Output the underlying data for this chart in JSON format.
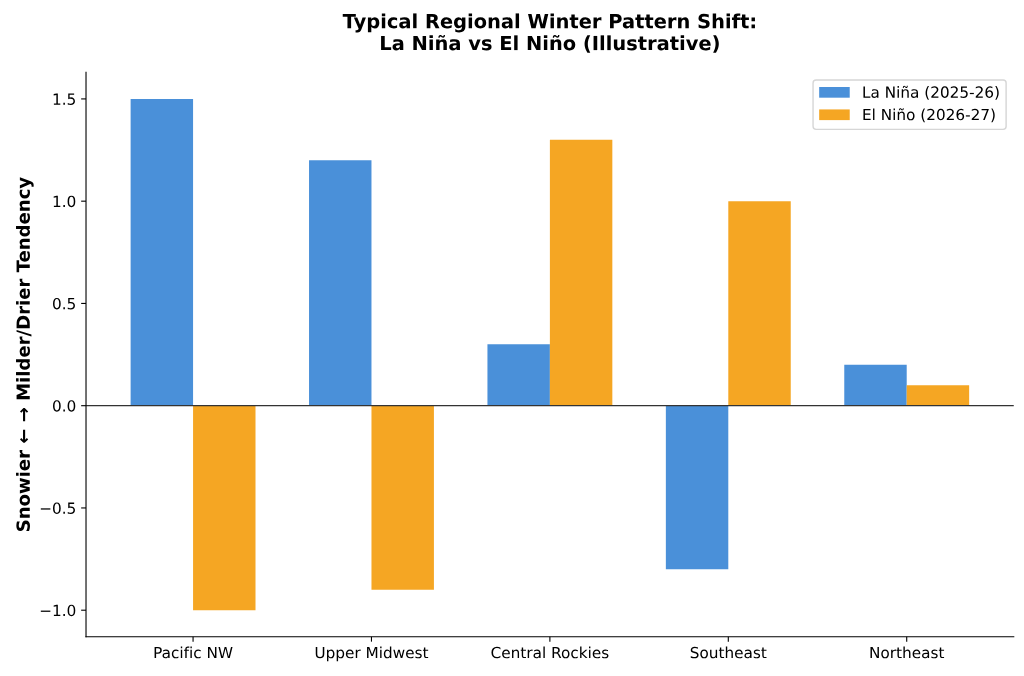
{
  "chart_data": {
    "type": "bar",
    "title": "Typical Regional Winter Pattern Shift:\nLa Niña vs El Niño (Illustrative)",
    "ylabel": "Snowier ← → Milder/Drier Tendency",
    "categories": [
      "Pacific NW",
      "Upper Midwest",
      "Central Rockies",
      "Southeast",
      "Northeast"
    ],
    "series": [
      {
        "name": "La Niña (2025-26)",
        "color": "#4a90d9",
        "values": [
          1.5,
          1.2,
          0.3,
          -0.8,
          0.2
        ]
      },
      {
        "name": "El Niño (2026-27)",
        "color": "#f5a623",
        "values": [
          -1.0,
          -0.9,
          1.3,
          1.0,
          0.1
        ]
      }
    ],
    "ylim": [
      -1.13,
      1.63
    ],
    "yticks": [
      {
        "value": -1.0,
        "label": "−1.0"
      },
      {
        "value": -0.5,
        "label": "−0.5"
      },
      {
        "value": 0.0,
        "label": "0.0"
      },
      {
        "value": 0.5,
        "label": "0.5"
      },
      {
        "value": 1.0,
        "label": "1.0"
      },
      {
        "value": 1.5,
        "label": "1.5"
      }
    ],
    "ref_lines": [
      {
        "axis": "y",
        "value": 0,
        "color": "#333333",
        "line_style": "solid"
      }
    ],
    "grid": false,
    "legend": "top right"
  }
}
